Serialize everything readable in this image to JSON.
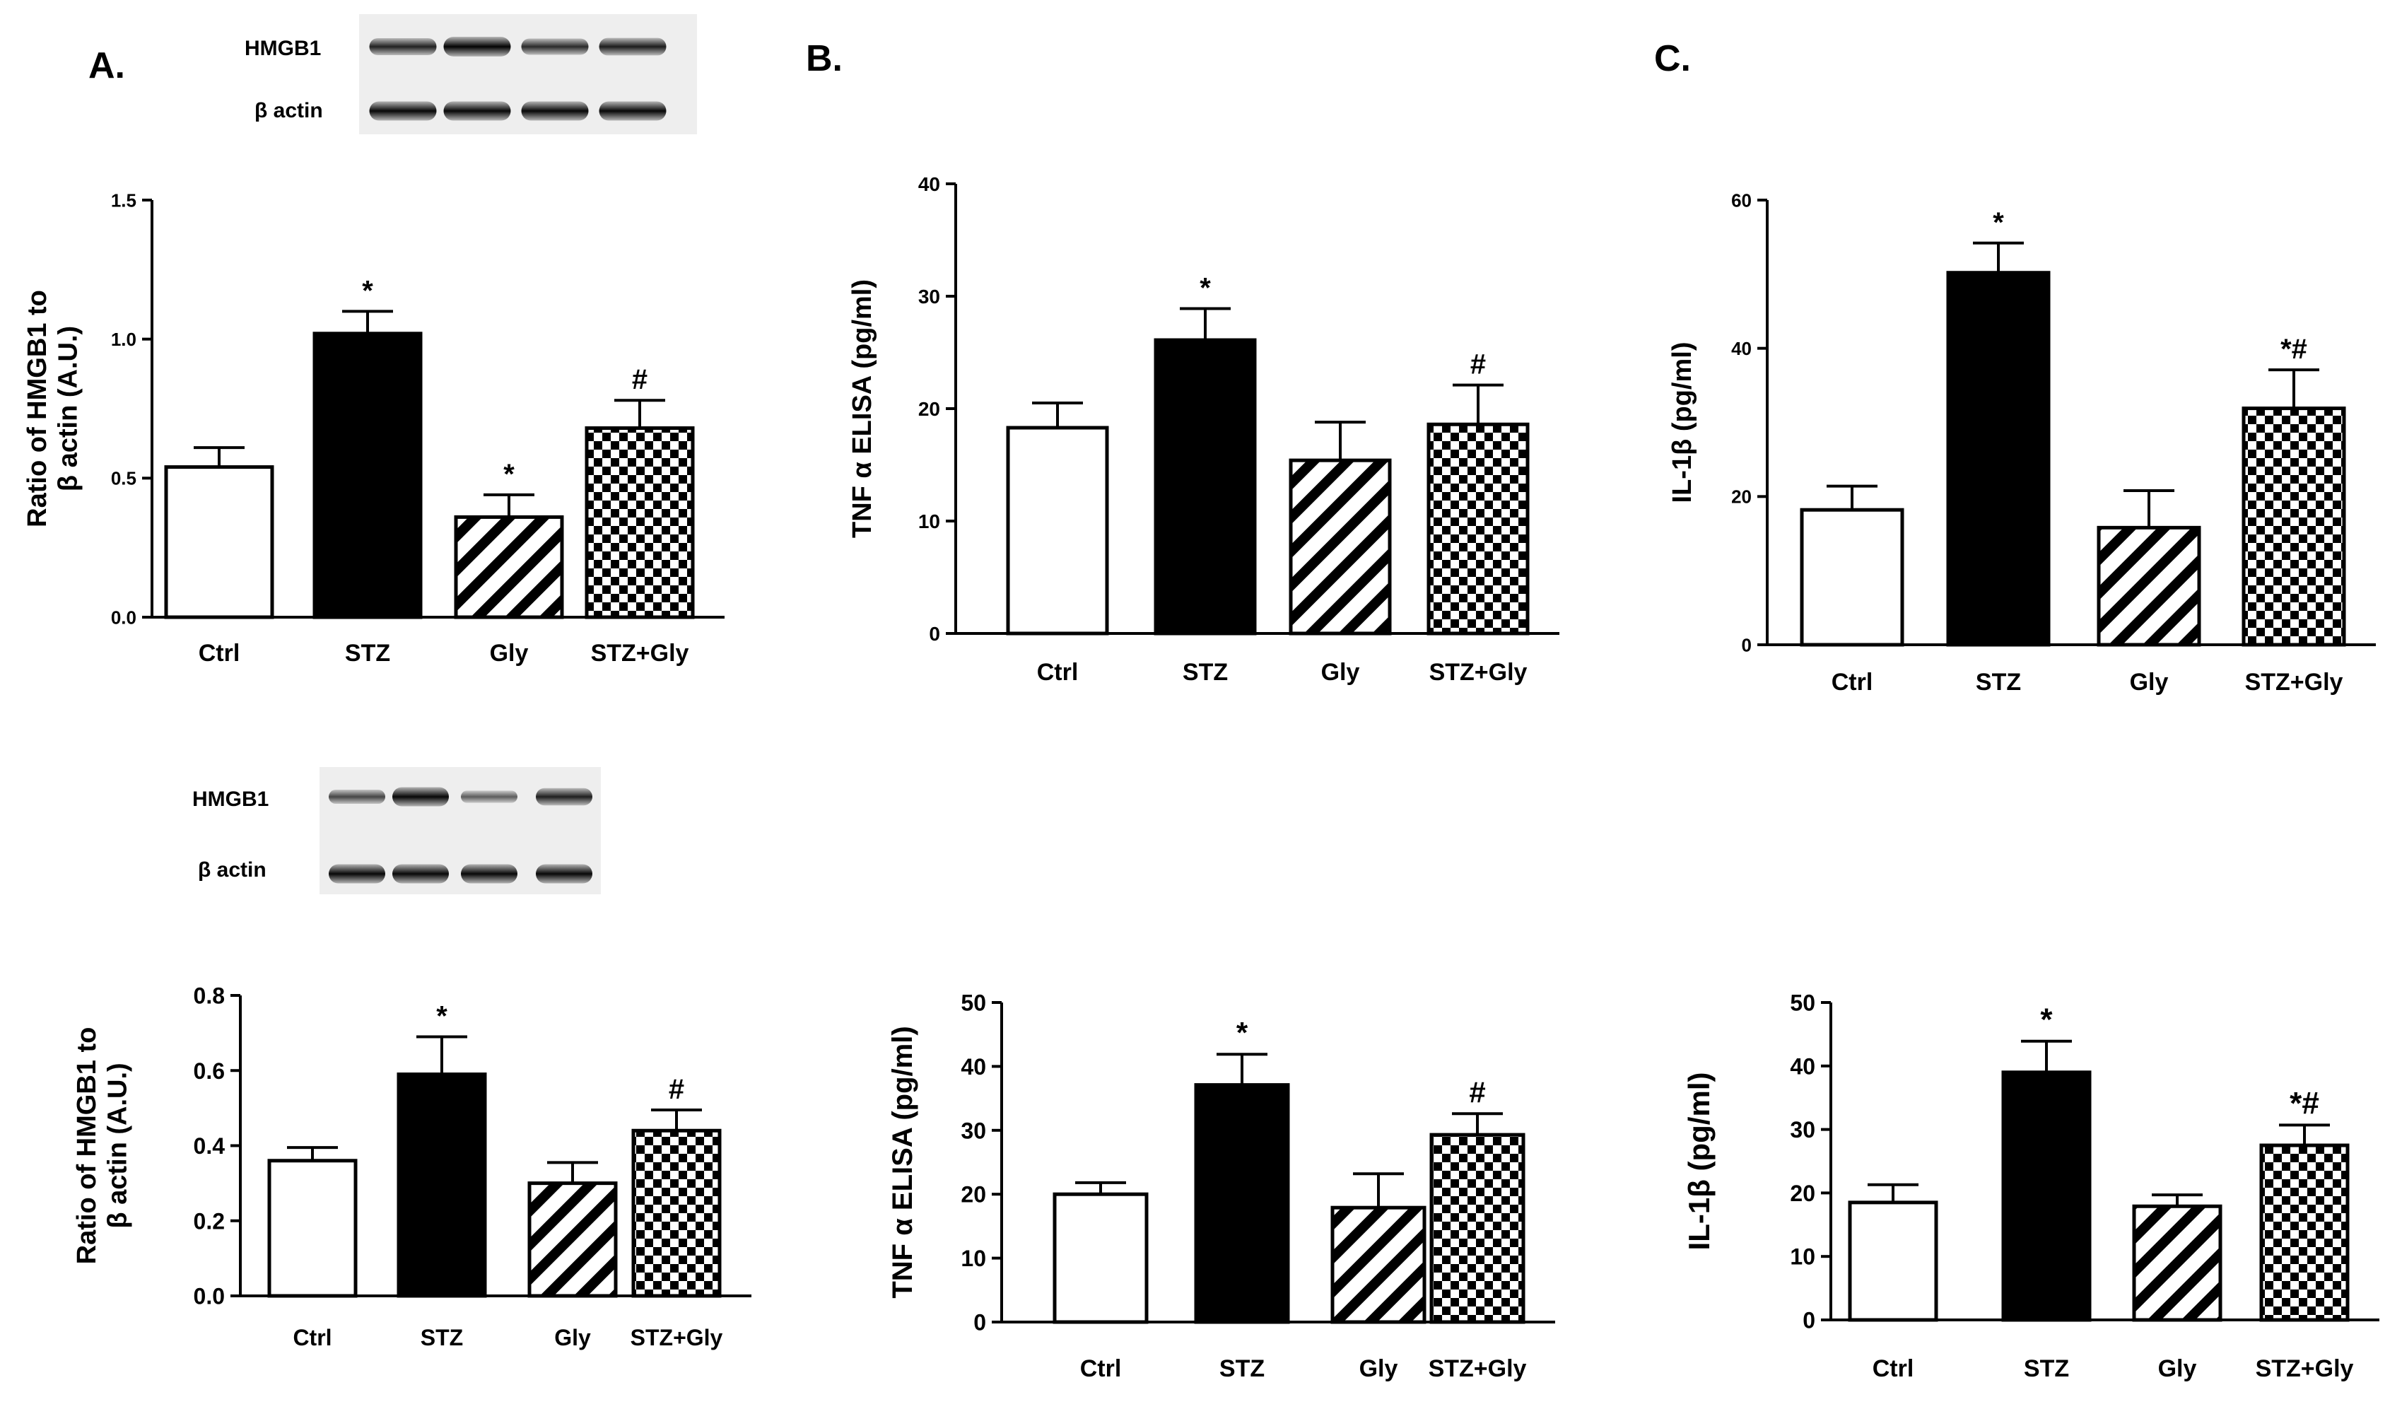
{
  "panel_letters": [
    "A.",
    "B.",
    "C."
  ],
  "blots": [
    {
      "labels": [
        "HMGB1",
        "β actin"
      ],
      "band_intensity": [
        [
          0.78,
          0.98,
          0.72,
          0.82
        ],
        [
          0.95,
          0.95,
          0.95,
          0.95
        ]
      ]
    },
    {
      "labels": [
        "HMGB1",
        "β actin"
      ],
      "band_intensity": [
        [
          0.55,
          0.95,
          0.4,
          0.8
        ],
        [
          0.95,
          0.95,
          0.95,
          0.95
        ]
      ]
    }
  ],
  "colors": {
    "ink": "#000000",
    "paper": "#ffffff"
  },
  "chart_data": [
    {
      "type": "bar",
      "ylabel_lines": [
        "Ratio of HMGB1 to",
        "β actin  (A.U.)"
      ],
      "categories": [
        "Ctrl",
        "STZ",
        "Gly",
        "STZ+Gly"
      ],
      "values": [
        0.54,
        1.02,
        0.36,
        0.68
      ],
      "errors": [
        0.07,
        0.08,
        0.08,
        0.1
      ],
      "annotations": [
        "",
        "*",
        "*",
        "#"
      ],
      "patterns": [
        "open",
        "solid",
        "hatch",
        "checker"
      ],
      "ylim": [
        0,
        1.5
      ],
      "ticks": [
        "0.0",
        "0.5",
        "1.0",
        "1.5"
      ]
    },
    {
      "type": "bar",
      "ylabel_lines": [
        "TNF α ELISA (pg/ml)"
      ],
      "categories": [
        "Ctrl",
        "STZ",
        "Gly",
        "STZ+Gly"
      ],
      "values": [
        18.3,
        26.1,
        15.4,
        18.6
      ],
      "errors": [
        2.2,
        2.8,
        3.4,
        3.5
      ],
      "annotations": [
        "",
        "*",
        "",
        "#"
      ],
      "patterns": [
        "open",
        "solid",
        "hatch",
        "checker"
      ],
      "ylim": [
        0,
        40
      ],
      "ticks": [
        "0",
        "10",
        "20",
        "30",
        "40"
      ]
    },
    {
      "type": "bar",
      "ylabel_lines": [
        "IL-1β (pg/ml)"
      ],
      "categories": [
        "Ctrl",
        "STZ",
        "Gly",
        "STZ+Gly"
      ],
      "values": [
        18.2,
        50.2,
        15.8,
        31.9
      ],
      "errors": [
        3.2,
        4.0,
        5.0,
        5.2
      ],
      "annotations": [
        "",
        "*",
        "",
        "*#"
      ],
      "patterns": [
        "open",
        "solid",
        "hatch",
        "checker"
      ],
      "ylim": [
        0,
        60
      ],
      "ticks": [
        "0",
        "20",
        "40",
        "60"
      ]
    },
    {
      "type": "bar",
      "ylabel_lines": [
        "Ratio of HMGB1 to",
        "β actin  (A.U.)"
      ],
      "categories": [
        "Ctrl",
        "STZ",
        "Gly",
        "STZ+Gly"
      ],
      "values": [
        0.36,
        0.59,
        0.3,
        0.44
      ],
      "errors": [
        0.035,
        0.1,
        0.055,
        0.055
      ],
      "annotations": [
        "",
        "*",
        "",
        "#"
      ],
      "patterns": [
        "open",
        "solid",
        "hatch",
        "checker"
      ],
      "ylim": [
        0,
        0.8
      ],
      "ticks": [
        "0.0",
        "0.2",
        "0.4",
        "0.6",
        "0.8"
      ]
    },
    {
      "type": "bar",
      "ylabel_lines": [
        "TNF α ELISA (pg/ml)"
      ],
      "categories": [
        "Ctrl",
        "STZ",
        "Gly",
        "STZ+Gly"
      ],
      "values": [
        20.0,
        37.1,
        17.9,
        29.3
      ],
      "errors": [
        1.8,
        4.8,
        5.3,
        3.3
      ],
      "annotations": [
        "",
        "*",
        "",
        "#"
      ],
      "patterns": [
        "open",
        "solid",
        "hatch",
        "checker"
      ],
      "ylim": [
        0,
        50
      ],
      "ticks": [
        "0",
        "10",
        "20",
        "30",
        "40",
        "50"
      ]
    },
    {
      "type": "bar",
      "ylabel_lines": [
        "IL-1β (pg/ml)"
      ],
      "categories": [
        "Ctrl",
        "STZ",
        "Gly",
        "STZ+Gly"
      ],
      "values": [
        18.5,
        39.0,
        17.9,
        27.5
      ],
      "errors": [
        2.8,
        4.9,
        1.8,
        3.2
      ],
      "annotations": [
        "",
        "*",
        "",
        "*#"
      ],
      "patterns": [
        "open",
        "solid",
        "hatch",
        "checker"
      ],
      "ylim": [
        0,
        50
      ],
      "ticks": [
        "0",
        "10",
        "20",
        "30",
        "40",
        "50"
      ]
    }
  ]
}
